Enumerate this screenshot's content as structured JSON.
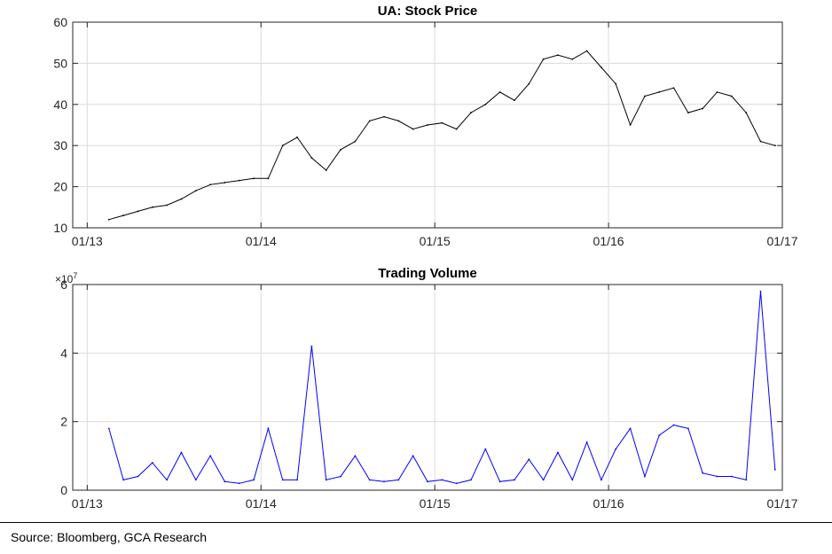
{
  "chart_data": [
    {
      "type": "line",
      "title": "UA: Stock Price",
      "xlabel": "",
      "ylabel": "",
      "x_ticks": [
        "01/13",
        "01/14",
        "01/15",
        "01/16",
        "01/17"
      ],
      "y_ticks": [
        "10",
        "20",
        "30",
        "40",
        "50",
        "60"
      ],
      "xlim": [
        "2012-12",
        "2017-01"
      ],
      "ylim": [
        10,
        60
      ],
      "grid": true,
      "line_color": "#000000",
      "x": [
        "2013-02",
        "2013-03",
        "2013-04",
        "2013-05",
        "2013-06",
        "2013-07",
        "2013-08",
        "2013-09",
        "2013-10",
        "2013-11",
        "2013-12",
        "2014-01",
        "2014-02",
        "2014-03",
        "2014-04",
        "2014-05",
        "2014-06",
        "2014-07",
        "2014-08",
        "2014-09",
        "2014-10",
        "2014-11",
        "2014-12",
        "2015-01",
        "2015-02",
        "2015-03",
        "2015-04",
        "2015-05",
        "2015-06",
        "2015-07",
        "2015-08",
        "2015-09",
        "2015-10",
        "2015-11",
        "2015-12",
        "2016-01",
        "2016-02",
        "2016-03",
        "2016-04",
        "2016-05",
        "2016-06",
        "2016-07",
        "2016-08",
        "2016-09",
        "2016-10",
        "2016-11",
        "2016-12"
      ],
      "y": [
        12,
        13,
        14,
        15,
        15.5,
        17,
        19,
        20.5,
        21,
        21.5,
        22,
        22,
        30,
        32,
        27,
        24,
        29,
        31,
        36,
        37,
        36,
        34,
        35,
        35.5,
        34,
        38,
        40,
        43,
        41,
        45,
        51,
        52,
        51,
        53,
        49,
        45,
        35,
        42,
        43,
        44,
        38,
        39,
        43,
        42,
        38,
        31,
        30
      ]
    },
    {
      "type": "line",
      "title": "Trading Volume",
      "xlabel": "",
      "ylabel": "",
      "y_exponent_label": "×10",
      "y_exponent_power": "7",
      "x_ticks": [
        "01/13",
        "01/14",
        "01/15",
        "01/16",
        "01/17"
      ],
      "y_ticks": [
        "0",
        "2",
        "4",
        "6"
      ],
      "xlim": [
        "2012-12",
        "2017-01"
      ],
      "ylim": [
        0,
        60000000
      ],
      "grid": true,
      "line_color": "#0000ff",
      "x": [
        "2013-02",
        "2013-03",
        "2013-04",
        "2013-05",
        "2013-06",
        "2013-07",
        "2013-08",
        "2013-09",
        "2013-10",
        "2013-11",
        "2013-12",
        "2014-01",
        "2014-02",
        "2014-03",
        "2014-04",
        "2014-05",
        "2014-06",
        "2014-07",
        "2014-08",
        "2014-09",
        "2014-10",
        "2014-11",
        "2014-12",
        "2015-01",
        "2015-02",
        "2015-03",
        "2015-04",
        "2015-05",
        "2015-06",
        "2015-07",
        "2015-08",
        "2015-09",
        "2015-10",
        "2015-11",
        "2015-12",
        "2016-01",
        "2016-02",
        "2016-03",
        "2016-04",
        "2016-05",
        "2016-06",
        "2016-07",
        "2016-08",
        "2016-09",
        "2016-10",
        "2016-11",
        "2016-12"
      ],
      "y": [
        18000000,
        3000000,
        4000000,
        8000000,
        3000000,
        11000000,
        3000000,
        10000000,
        2500000,
        2000000,
        3000000,
        18000000,
        3000000,
        3000000,
        42000000,
        3000000,
        4000000,
        10000000,
        3000000,
        2500000,
        3000000,
        10000000,
        2500000,
        3000000,
        2000000,
        3000000,
        12000000,
        2500000,
        3000000,
        9000000,
        3000000,
        11000000,
        3000000,
        14000000,
        3000000,
        12000000,
        18000000,
        4000000,
        16000000,
        19000000,
        18000000,
        5000000,
        4000000,
        4000000,
        3000000,
        58000000,
        6000000
      ]
    }
  ],
  "footer": {
    "source_text": "Source: Bloomberg, GCA Research"
  }
}
